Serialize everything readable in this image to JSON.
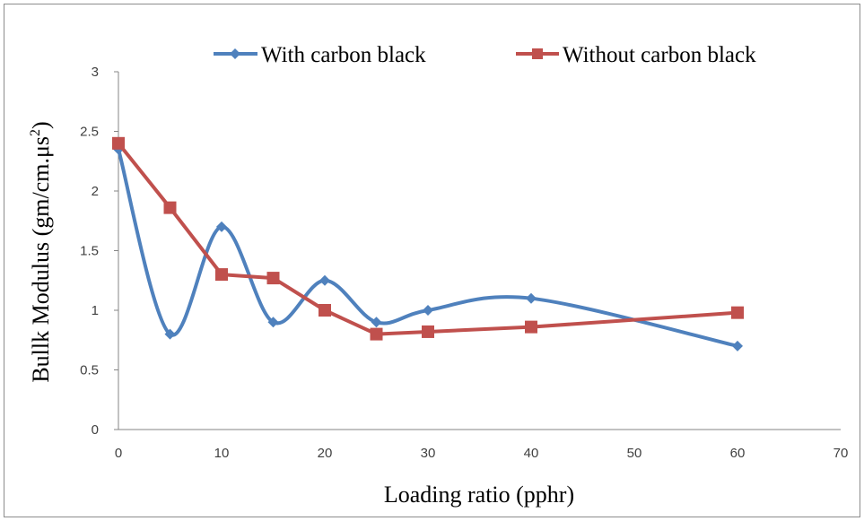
{
  "chart_data": {
    "type": "line",
    "title": "",
    "xlabel": "Loading ratio (pphr)",
    "ylabel_parts": {
      "main": "Bullk Modulus (gm/cm.μs",
      "sup": "2",
      "close": ")"
    },
    "xlim": [
      0,
      70
    ],
    "ylim": [
      0,
      3
    ],
    "xticks": [
      "0",
      "10",
      "20",
      "30",
      "40",
      "50",
      "60",
      "70"
    ],
    "yticks": [
      "0",
      "0.5",
      "1",
      "1.5",
      "2",
      "2.5",
      "3"
    ],
    "grid": false,
    "legend_position": "top",
    "series": [
      {
        "name": "With carbon black",
        "color": "#4F81BD",
        "marker": "diamond",
        "smooth": true,
        "points": [
          [
            0,
            2.35
          ],
          [
            5,
            0.8
          ],
          [
            10,
            1.7
          ],
          [
            15,
            0.9
          ],
          [
            20,
            1.25
          ],
          [
            25,
            0.9
          ],
          [
            30,
            1.0
          ],
          [
            40,
            1.1
          ],
          [
            60,
            0.7
          ]
        ]
      },
      {
        "name": "Without carbon black",
        "color": "#C0504D",
        "marker": "square",
        "smooth": false,
        "points": [
          [
            0,
            2.4
          ],
          [
            5,
            1.86
          ],
          [
            10,
            1.3
          ],
          [
            15,
            1.27
          ],
          [
            20,
            1.0
          ],
          [
            25,
            0.8
          ],
          [
            30,
            0.82
          ],
          [
            40,
            0.86
          ],
          [
            60,
            0.98
          ]
        ]
      }
    ]
  }
}
